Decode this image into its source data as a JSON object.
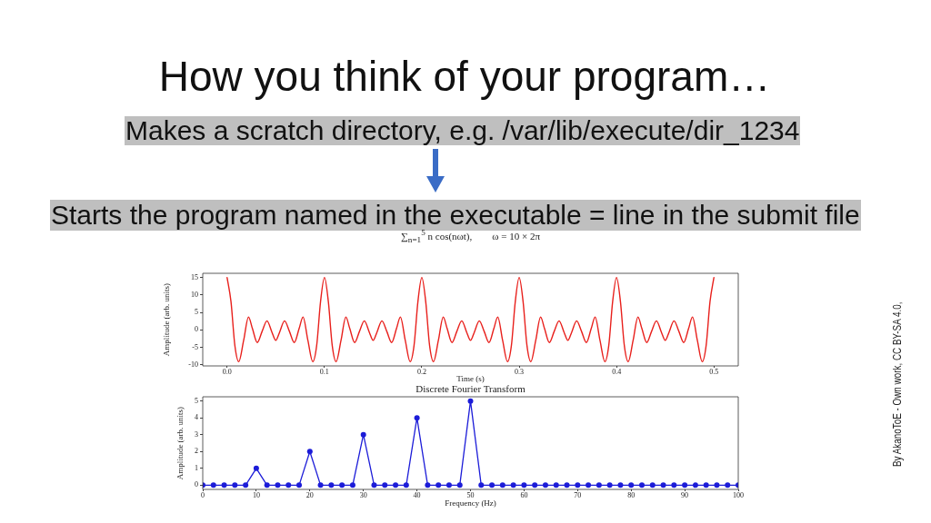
{
  "chart_data": [
    {
      "type": "line",
      "title": "∑$_{n=1}$$^{5}$ n cos(nωt),        ω = 10 × 2π",
      "xlabel": "Time (s)",
      "ylabel": "Amplitude (arb. units)",
      "x": [
        0,
        0.004,
        0.008,
        0.012,
        0.017,
        0.022,
        0.026,
        0.031,
        0.036,
        0.041,
        0.046,
        0.05,
        0.054,
        0.059,
        0.064,
        0.069,
        0.074,
        0.078,
        0.083,
        0.088,
        0.092,
        0.096,
        0.1,
        0.104,
        0.108,
        0.112,
        0.117,
        0.122,
        0.126,
        0.131,
        0.136,
        0.141,
        0.146,
        0.15,
        0.154,
        0.159,
        0.164,
        0.169,
        0.174,
        0.178,
        0.183,
        0.188,
        0.192,
        0.196,
        0.2,
        0.204,
        0.208,
        0.212,
        0.217,
        0.222,
        0.226,
        0.231,
        0.236,
        0.241,
        0.246,
        0.25,
        0.254,
        0.259,
        0.264,
        0.269,
        0.274,
        0.278,
        0.283,
        0.288,
        0.292,
        0.296,
        0.3,
        0.304,
        0.308,
        0.312,
        0.317,
        0.322,
        0.326,
        0.331,
        0.336,
        0.341,
        0.346,
        0.35,
        0.354,
        0.359,
        0.364,
        0.369,
        0.374,
        0.378,
        0.383,
        0.388,
        0.392,
        0.396,
        0.4,
        0.404,
        0.408,
        0.412,
        0.417,
        0.422,
        0.426,
        0.431,
        0.436,
        0.441,
        0.446,
        0.45,
        0.454,
        0.459,
        0.464,
        0.469,
        0.474,
        0.478,
        0.483,
        0.488,
        0.492,
        0.496,
        0.5
      ],
      "series": [
        {
          "color": "#e8201c",
          "values": [
            15,
            8.1,
            -4.5,
            -9.1,
            -3,
            3.7,
            0.4,
            -3.6,
            -0.4,
            2.6,
            -0.6,
            -3,
            -0.6,
            2.6,
            -0.4,
            -3.6,
            0.4,
            3.7,
            -3,
            -9.1,
            -4.5,
            8.1,
            15,
            8.1,
            -4.5,
            -9.1,
            -3,
            3.7,
            0.4,
            -3.6,
            -0.4,
            2.6,
            -0.6,
            -3,
            -0.6,
            2.6,
            -0.4,
            -3.6,
            0.4,
            3.7,
            -3,
            -9.1,
            -4.5,
            8.1,
            15,
            8.1,
            -4.5,
            -9.1,
            -3,
            3.7,
            0.4,
            -3.6,
            -0.4,
            2.6,
            -0.6,
            -3,
            -0.6,
            2.6,
            -0.4,
            -3.6,
            0.4,
            3.7,
            -3,
            -9.1,
            -4.5,
            8.1,
            15,
            8.1,
            -4.5,
            -9.1,
            -3,
            3.7,
            0.4,
            -3.6,
            -0.4,
            2.6,
            -0.6,
            -3,
            -0.6,
            2.6,
            -0.4,
            -3.6,
            0.4,
            3.7,
            -3,
            -9.1,
            -4.5,
            8.1,
            15,
            8.1,
            -4.5,
            -9.1,
            -3,
            3.7,
            0.4,
            -3.6,
            -0.4,
            2.6,
            -0.6,
            -3,
            -0.6,
            2.6,
            -0.4,
            -3.6,
            0.4,
            3.7,
            -3,
            -9.1,
            -4.5,
            8.1,
            15
          ]
        }
      ],
      "xlim": [
        -0.025,
        0.525
      ],
      "xticks": [
        {
          "value": 0,
          "label": "0.0"
        },
        {
          "value": 0.1,
          "label": "0.1"
        },
        {
          "value": 0.2,
          "label": "0.2"
        },
        {
          "value": 0.3,
          "label": "0.3"
        },
        {
          "value": 0.4,
          "label": "0.4"
        },
        {
          "value": 0.5,
          "label": "0.5"
        }
      ],
      "ylim": [
        -10.3,
        16.2
      ],
      "yticks": [
        -10,
        -5,
        0,
        5,
        10,
        15
      ],
      "grid": false,
      "legend": false,
      "marker": "none",
      "line_style": "solid",
      "annotations": [
        "How you think of your program…",
        "Makes a scratch directory, e.g. /var/lib/execute/dir_1234",
        "Starts the program named in the executable = line in the submit file",
        "By AkanoToE - Own work, CC BY-SA 4.0,"
      ]
    },
    {
      "type": "line",
      "title": "Discrete Fourier Transform",
      "xlabel": "Frequency (Hz)",
      "ylabel": "Amplitude (arb. units)",
      "x": [
        0,
        2,
        4,
        6,
        8,
        10,
        12,
        14,
        16,
        18,
        20,
        22,
        24,
        26,
        28,
        30,
        32,
        34,
        36,
        38,
        40,
        42,
        44,
        46,
        48,
        50,
        52,
        54,
        56,
        58,
        60,
        62,
        64,
        66,
        68,
        70,
        72,
        74,
        76,
        78,
        80,
        82,
        84,
        86,
        88,
        90,
        92,
        94,
        96,
        98,
        100
      ],
      "series": [
        {
          "color": "#1c1cd8",
          "values": [
            0,
            0,
            0,
            0,
            0,
            1,
            0,
            0,
            0,
            0,
            2,
            0,
            0,
            0,
            0,
            3,
            0,
            0,
            0,
            0,
            4,
            0,
            0,
            0,
            0,
            5,
            0,
            0,
            0,
            0,
            0,
            0,
            0,
            0,
            0,
            0,
            0,
            0,
            0,
            0,
            0,
            0,
            0,
            0,
            0,
            0,
            0,
            0,
            0,
            0,
            0
          ]
        }
      ],
      "xlim": [
        0,
        100
      ],
      "xticks": [
        0,
        10,
        20,
        30,
        40,
        50,
        60,
        70,
        80,
        90,
        100
      ],
      "ylim": [
        -0.25,
        5.25
      ],
      "yticks": [
        0,
        1,
        2,
        3,
        4,
        5
      ],
      "grid": false,
      "legend": false,
      "marker": "circle",
      "line_style": "solid"
    }
  ]
}
